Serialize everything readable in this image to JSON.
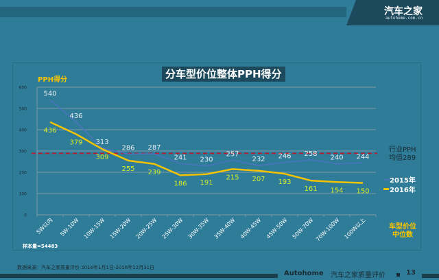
{
  "header": {
    "logo_text": "汽车之家",
    "logo_domain": "autohome.com.cn"
  },
  "chart_data": {
    "type": "line",
    "title": "分车型价位整体PPH得分",
    "ylabel": "PPH得分",
    "xlabel": "车型价位中位数",
    "xlabel_lines": [
      "车型价位",
      "中位数"
    ],
    "ylim": [
      0,
      600
    ],
    "yticks": [
      0,
      100,
      200,
      300,
      400,
      500,
      600
    ],
    "grid": true,
    "legend_position": "right",
    "categories": [
      "5W以内",
      "5W-10W",
      "10W-15W",
      "15W-20W",
      "20W-25W",
      "25W-30W",
      "30W-35W",
      "35W-40W",
      "40W-45W",
      "45W-50W",
      "50W-70W",
      "70W-100W",
      "100W以上"
    ],
    "series": [
      {
        "name": "2015年",
        "color": "#4a74c0",
        "label_color": "#e8eef2",
        "values": [
          540,
          436,
          313,
          286,
          287,
          241,
          230,
          257,
          232,
          246,
          258,
          240,
          244
        ]
      },
      {
        "name": "2016年",
        "color": "#f5c400",
        "label_color": "#d6ec2a",
        "values": [
          436,
          379,
          309,
          255,
          239,
          186,
          191,
          215,
          207,
          193,
          161,
          154,
          150
        ]
      }
    ],
    "reference_line": {
      "value": 289,
      "color": "#c0192a",
      "label_lines": [
        "行业PPH",
        "均值289"
      ]
    }
  },
  "sample_size": "样本量=54483",
  "source": "数据来源：汽车之家质量评价 2016年1月1日-2016年12月31日",
  "footer": {
    "brand": "Autohome",
    "subtitle": "汽车之家质量评价",
    "page": "13"
  }
}
